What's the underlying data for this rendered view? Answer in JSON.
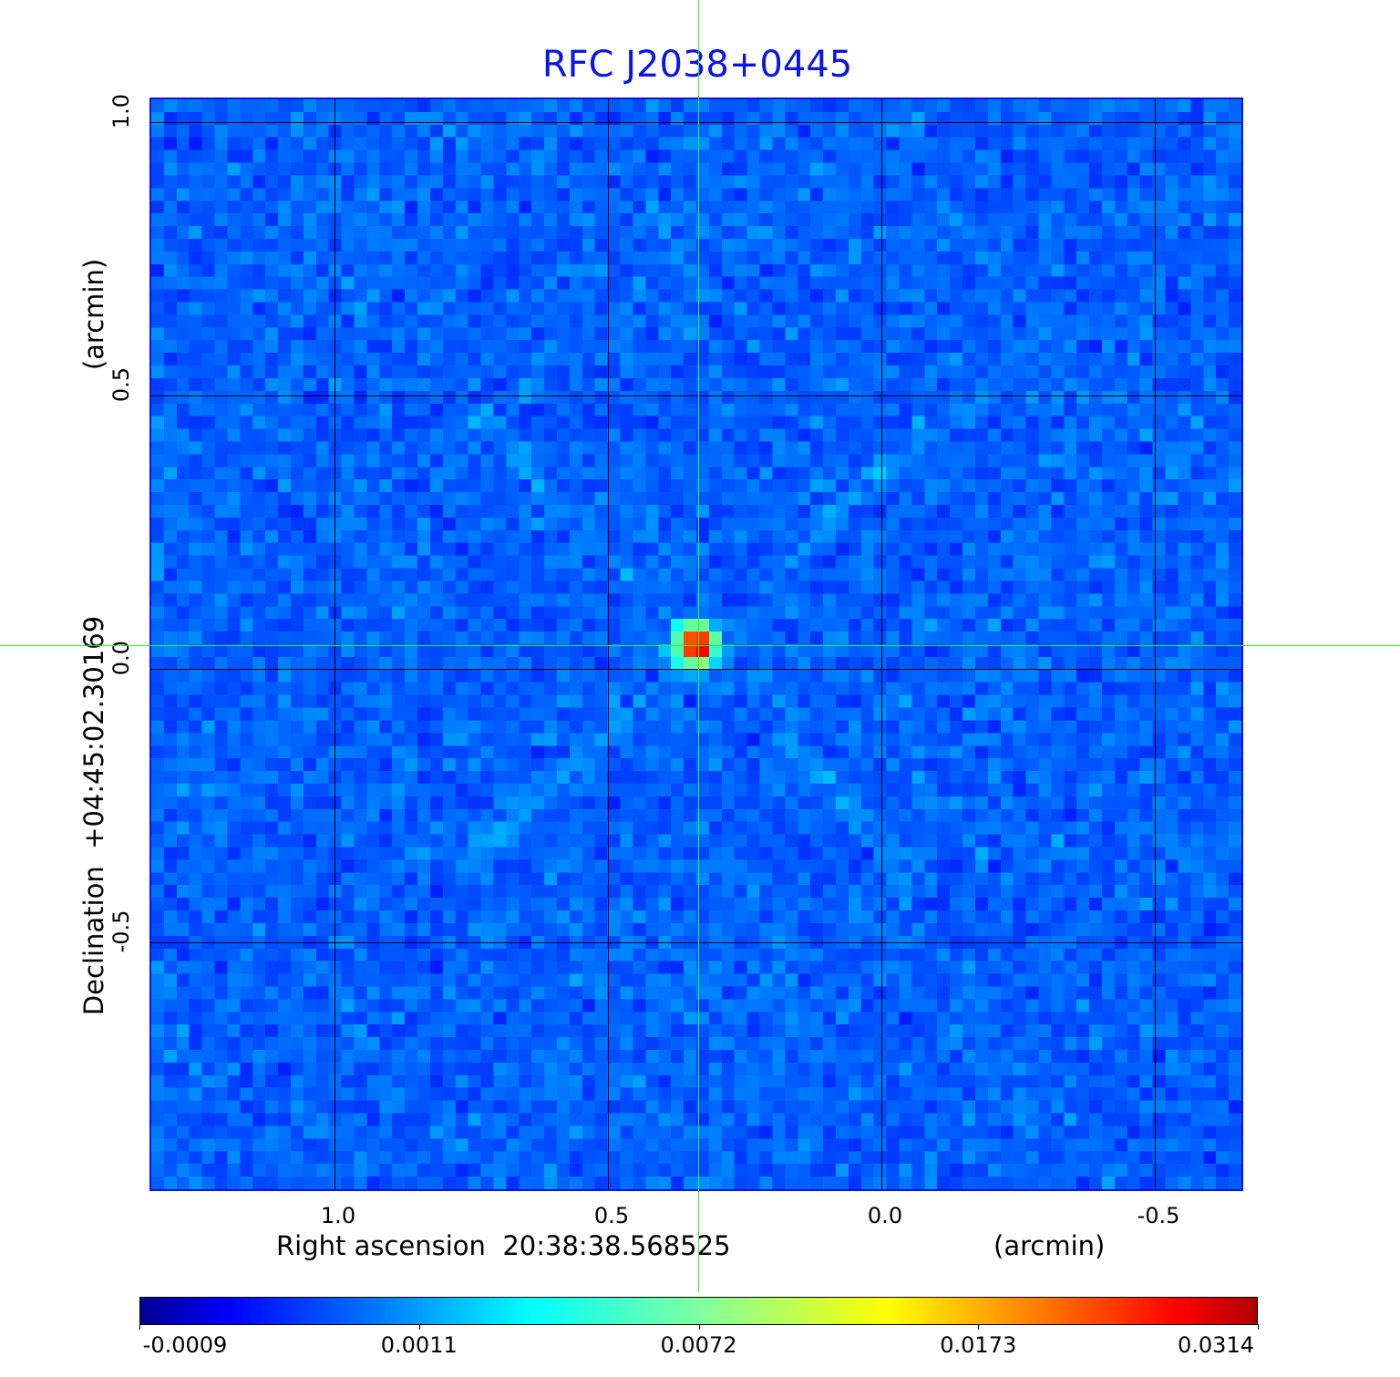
{
  "chart_data": {
    "type": "heatmap",
    "title": "RFC J2038+0445",
    "xlabel": "Right ascension  20:38:38.568525",
    "xunit": "(arcmin)",
    "ylabel": "Declination  +04:45:02.30169",
    "yunit": "(arcmin)",
    "xlim": [
      1.335,
      -0.665
    ],
    "ylim": [
      -0.958,
      1.042
    ],
    "xticks": [
      {
        "v": 1.0,
        "label": "1.0"
      },
      {
        "v": 0.5,
        "label": "0.5"
      },
      {
        "v": 0.0,
        "label": "0.0"
      },
      {
        "v": -0.5,
        "label": "-0.5"
      }
    ],
    "yticks": [
      {
        "v": 1.0,
        "label": "1.0"
      },
      {
        "v": 0.5,
        "label": "0.5"
      },
      {
        "v": 0.0,
        "label": "0.0"
      },
      {
        "v": -0.5,
        "label": "-0.5"
      }
    ],
    "grid": true,
    "colormap": "jet",
    "colorbar": {
      "placement": "bottom",
      "ticks": [
        "-0.0009",
        "0.0011",
        "0.0072",
        "0.0173",
        "0.0314"
      ]
    },
    "peak": {
      "x": 0.335,
      "y": 0.04,
      "value": 0.0314
    },
    "crosshair": {
      "x": 0.335,
      "y": 0.04,
      "color": "#33ee33"
    },
    "title_color": "#0a14e6"
  }
}
